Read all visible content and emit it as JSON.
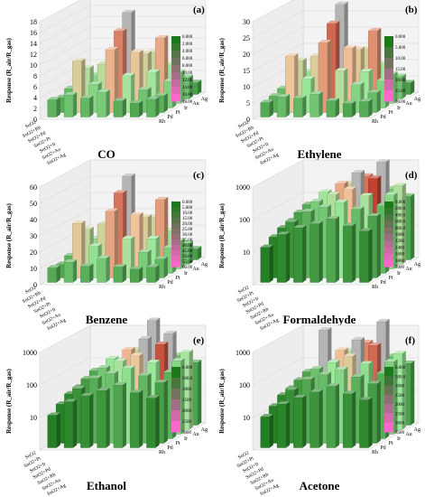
{
  "figure": {
    "layout": "3x2 grid",
    "colors": {
      "bar_low": "#1e7a1e",
      "bar_mid": "#9be89b",
      "bar_peach": "#f1c39a",
      "bar_high": "#c0392b",
      "bar_gray": "#b5b5b5",
      "scale_top": "#1a7a1a",
      "scale_bottom": "#ff66cc"
    }
  },
  "chart_data": [
    {
      "panel_label": "(a)",
      "type": "bar",
      "gas": "CO",
      "log_scale": false,
      "ylabel": "Response (R_air/R_gas)",
      "ylim": [
        0,
        18
      ],
      "ticks": [
        "0",
        "2",
        "4",
        "6",
        "8",
        "10",
        "12",
        "14",
        "16",
        "18"
      ],
      "categories": [
        "SnO2",
        "SnO2+Rh",
        "SnO2+Pd",
        "SnO2+Pt",
        "SnO2+Ir",
        "SnO2+Au",
        "SnO2+Ag"
      ],
      "depth_labels": [
        "Rh",
        "Pd",
        "Pt",
        "Ir",
        "Au",
        "Ag"
      ],
      "values": [
        [
          3.2,
          4.1,
          3.5,
          4.6,
          3.0,
          2.6,
          3.3
        ],
        [
          2.8,
          9.5,
          5.2,
          11.6,
          6.8,
          4.2,
          3.1
        ],
        [
          3.6,
          7.4,
          8.1,
          14.2,
          10.3,
          6.6,
          4.9
        ],
        [
          2.5,
          5.3,
          6.9,
          16.8,
          9.2,
          12.1,
          5.8
        ],
        [
          2.2,
          3.8,
          4.4,
          7.1,
          8.6,
          6.3,
          4.0
        ],
        [
          1.6,
          2.4,
          3.1,
          4.2,
          3.4,
          2.9,
          2.2
        ]
      ],
      "colorscale_labels": [
        "0.000",
        "2.000",
        "4.000",
        "6.000",
        "8.000",
        "10.00",
        "12.00",
        "14.00",
        "16.00",
        "18.00"
      ]
    },
    {
      "panel_label": "(b)",
      "type": "bar",
      "gas": "Ethylene",
      "log_scale": false,
      "ylabel": "Response (R_air/R_gas)",
      "ylim": [
        0,
        30
      ],
      "ticks": [
        "0",
        "5",
        "10",
        "15",
        "20",
        "25",
        "30"
      ],
      "categories": [
        "SnO2",
        "SnO2+Rh",
        "SnO2+Pd",
        "SnO2+Pt",
        "SnO2+Ir",
        "SnO2+Au",
        "SnO2+Ag"
      ],
      "depth_labels": [
        "Rh",
        "Pd",
        "Pt",
        "Ir",
        "Au",
        "Ag"
      ],
      "values": [
        [
          4.5,
          6.2,
          5.8,
          7.1,
          5.0,
          4.2,
          4.8
        ],
        [
          5.1,
          17.4,
          10.3,
          21.5,
          12.8,
          8.6,
          6.1
        ],
        [
          6.0,
          14.6,
          15.9,
          26.0,
          18.4,
          11.2,
          8.3
        ],
        [
          4.3,
          9.8,
          12.5,
          30.5,
          16.7,
          22.4,
          9.1
        ],
        [
          3.7,
          6.6,
          8.2,
          12.9,
          15.3,
          10.8,
          6.9
        ],
        [
          2.8,
          4.1,
          5.6,
          7.5,
          6.0,
          4.9,
          3.6
        ]
      ],
      "colorscale_labels": [
        "0.000",
        "5.000",
        "10.00",
        "15.00",
        "20.00",
        "25.00",
        "30.00"
      ]
    },
    {
      "panel_label": "(c)",
      "type": "bar",
      "gas": "Benzene",
      "log_scale": false,
      "ylabel": "Response (R_air/R_gas)",
      "ylim": [
        0,
        60
      ],
      "ticks": [
        "0",
        "10",
        "20",
        "30",
        "40",
        "50",
        "60"
      ],
      "categories": [
        "SnO2",
        "SnO2+Rh",
        "SnO2+Pd",
        "SnO2+Pt",
        "SnO2+Ir",
        "SnO2+Au",
        "SnO2+Ag"
      ],
      "depth_labels": [
        "Rh",
        "Pd",
        "Pt",
        "Ir",
        "Au",
        "Ag"
      ],
      "values": [
        [
          9.0,
          12.5,
          10.1,
          14.8,
          9.6,
          8.2,
          9.4
        ],
        [
          8.4,
          33.6,
          19.5,
          41.0,
          24.2,
          15.8,
          11.6
        ],
        [
          10.8,
          27.1,
          30.4,
          49.5,
          36.0,
          21.3,
          15.7
        ],
        [
          8.0,
          18.6,
          23.7,
          57.0,
          31.8,
          42.6,
          17.2
        ],
        [
          6.9,
          12.4,
          15.8,
          24.5,
          29.1,
          20.7,
          13.0
        ],
        [
          5.2,
          7.8,
          10.6,
          14.2,
          11.4,
          9.3,
          6.8
        ]
      ],
      "colorscale_labels": [
        "0.000",
        "5.000",
        "10.00",
        "15.00",
        "20.00",
        "25.00",
        "30.00",
        "35.00",
        "40.00",
        "45.00",
        "50.00",
        "55.00",
        "60.00"
      ]
    },
    {
      "panel_label": "(d)",
      "type": "bar",
      "gas": "Formaldehyde",
      "log_scale": true,
      "ylabel": "Response (R_air/R_gas)",
      "ylim": [
        1,
        1000
      ],
      "ticks": [
        "10",
        "100",
        "1000"
      ],
      "categories": [
        "SnO2",
        "SnO2+Pt",
        "SnO2+Ir",
        "SnO2+Pd",
        "SnO2+Rh",
        "SnO2+Au",
        "SnO2+Ag"
      ],
      "depth_labels": [
        "Rh",
        "Pd",
        "Pt",
        "Ir",
        "Au",
        "Ag"
      ],
      "values": [
        [
          12,
          30,
          48,
          64,
          90,
          55,
          38
        ],
        [
          18,
          52,
          110,
          150,
          210,
          130,
          80
        ],
        [
          25,
          75,
          160,
          260,
          380,
          240,
          120
        ],
        [
          30,
          95,
          230,
          420,
          900,
          610,
          190
        ],
        [
          22,
          68,
          140,
          310,
          520,
          1400,
          260
        ],
        [
          14,
          40,
          72,
          120,
          180,
          150,
          90
        ]
      ],
      "colorscale_labels": [
        "0.000",
        "200.0",
        "400.0",
        "600.0",
        "800.0",
        "1000",
        "1200",
        "1400",
        "1600",
        "1800",
        "2000"
      ]
    },
    {
      "panel_label": "(e)",
      "type": "bar",
      "gas": "Ethanol",
      "log_scale": true,
      "ylabel": "Response (R_air/R_gas)",
      "ylim": [
        1,
        1000
      ],
      "ticks": [
        "10",
        "100",
        "1000"
      ],
      "categories": [
        "SnO2",
        "SnO2+Pt",
        "SnO2+Ir",
        "SnO2+Pd",
        "SnO2+Rh",
        "SnO2+Au",
        "SnO2+Ag"
      ],
      "depth_labels": [
        "Rh",
        "Pd",
        "Pt",
        "Ir",
        "Au",
        "Ag"
      ],
      "values": [
        [
          10,
          26,
          40,
          58,
          85,
          50,
          34
        ],
        [
          16,
          48,
          100,
          140,
          200,
          120,
          74
        ],
        [
          24,
          70,
          150,
          240,
          360,
          220,
          110
        ],
        [
          28,
          90,
          210,
          400,
          850,
          580,
          180
        ],
        [
          20,
          62,
          130,
          290,
          2600,
          900,
          240
        ],
        [
          13,
          36,
          68,
          110,
          170,
          140,
          85
        ]
      ],
      "colorscale_labels": [
        "0.000",
        "500.0",
        "1000",
        "1500",
        "2000",
        "2500",
        "3000"
      ]
    },
    {
      "panel_label": "(f)",
      "type": "bar",
      "gas": "Acetone",
      "log_scale": true,
      "ylabel": "Response (R_air/R_gas)",
      "ylim": [
        1,
        1000
      ],
      "ticks": [
        "10",
        "100",
        "1000"
      ],
      "categories": [
        "SnO2",
        "SnO2+Pt",
        "SnO2+Ir",
        "SnO2+Pd",
        "SnO2+Rh",
        "SnO2+Au",
        "SnO2+Ag"
      ],
      "depth_labels": [
        "Rh",
        "Pd",
        "Pt",
        "Ir",
        "Au",
        "Ag"
      ],
      "values": [
        [
          9,
          22,
          35,
          52,
          78,
          46,
          30
        ],
        [
          14,
          44,
          92,
          130,
          185,
          110,
          68
        ],
        [
          22,
          64,
          140,
          220,
          340,
          200,
          100
        ],
        [
          26,
          84,
          1600,
          380,
          800,
          540,
          170
        ],
        [
          18,
          58,
          120,
          270,
          480,
          2100,
          220
        ],
        [
          12,
          33,
          62,
          100,
          160,
          130,
          80
        ]
      ],
      "colorscale_labels": [
        "0.000",
        "500.0",
        "1000",
        "1500",
        "2000",
        "2500",
        "3000",
        "3500"
      ]
    }
  ]
}
